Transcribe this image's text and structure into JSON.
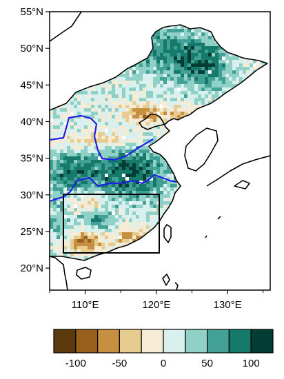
{
  "map": {
    "lat_labels": [
      "55°N",
      "50°N",
      "45°N",
      "40°N",
      "35°N",
      "30°N",
      "25°N",
      "20°N"
    ],
    "lon_labels": [
      "110°E",
      "120°E",
      "130°E"
    ],
    "lat_range": [
      17,
      55
    ],
    "lon_range": [
      105,
      136
    ],
    "region_box": {
      "lon": [
        107,
        120
      ],
      "lat": [
        22,
        30
      ]
    },
    "boundary_color": "#1f1fe6",
    "coast_color": "#000000"
  },
  "colorbar": {
    "tick_labels": [
      "-100",
      "-50",
      "0",
      "50",
      "100"
    ],
    "colors": [
      "#5c3a0d",
      "#99601b",
      "#c78f42",
      "#e6cc8f",
      "#f6ecd6",
      "#daf0ee",
      "#8fd0c7",
      "#43a096",
      "#167a6b",
      "#033d33"
    ],
    "levels": [
      -100,
      -75,
      -50,
      -25,
      0,
      25,
      50,
      75,
      100
    ]
  }
}
